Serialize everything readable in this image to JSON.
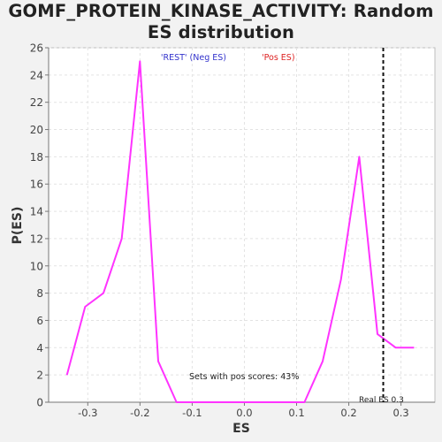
{
  "chart_data": {
    "type": "line",
    "title_line1": "GOMF_PROTEIN_KINASE_ACTIVITY: Random",
    "title_line2": "ES distribution",
    "xlabel": "ES",
    "ylabel": "P(ES)",
    "xlim": [
      -0.375,
      0.365
    ],
    "ylim": [
      0,
      26
    ],
    "x_ticks": [
      "-0.3",
      "-0.2",
      "-0.1",
      "0.0",
      "0.1",
      "0.2",
      "0.3"
    ],
    "x_tick_values": [
      -0.3,
      -0.2,
      -0.1,
      0.0,
      0.1,
      0.2,
      0.3
    ],
    "y_ticks": [
      "0",
      "2",
      "4",
      "6",
      "8",
      "10",
      "12",
      "14",
      "16",
      "18",
      "20",
      "22",
      "24",
      "26"
    ],
    "y_tick_values": [
      0,
      2,
      4,
      6,
      8,
      10,
      12,
      14,
      16,
      18,
      20,
      22,
      24,
      26
    ],
    "grid": true,
    "series": [
      {
        "color": "#ff33ff",
        "x": [
          -0.34,
          -0.305,
          -0.27,
          -0.235,
          -0.2,
          -0.165,
          -0.13,
          -0.095,
          -0.06,
          -0.025,
          0.01,
          0.045,
          0.08,
          0.115,
          0.15,
          0.185,
          0.22,
          0.255,
          0.29,
          0.325
        ],
        "y": [
          2,
          7,
          8,
          12,
          25,
          3,
          0,
          0,
          0,
          0,
          0,
          0,
          0,
          0,
          3,
          9,
          18,
          5,
          4,
          4
        ]
      }
    ],
    "legend": {
      "rest_label": "'REST' (Neg ES)",
      "rest_color": "#3333cc",
      "pos_label": "'Pos ES)",
      "pos_color": "#dd2222"
    },
    "real_es": {
      "value": 0.266,
      "label": "Real ES 0.3"
    },
    "annotation": "Sets with pos scores: 43%"
  }
}
